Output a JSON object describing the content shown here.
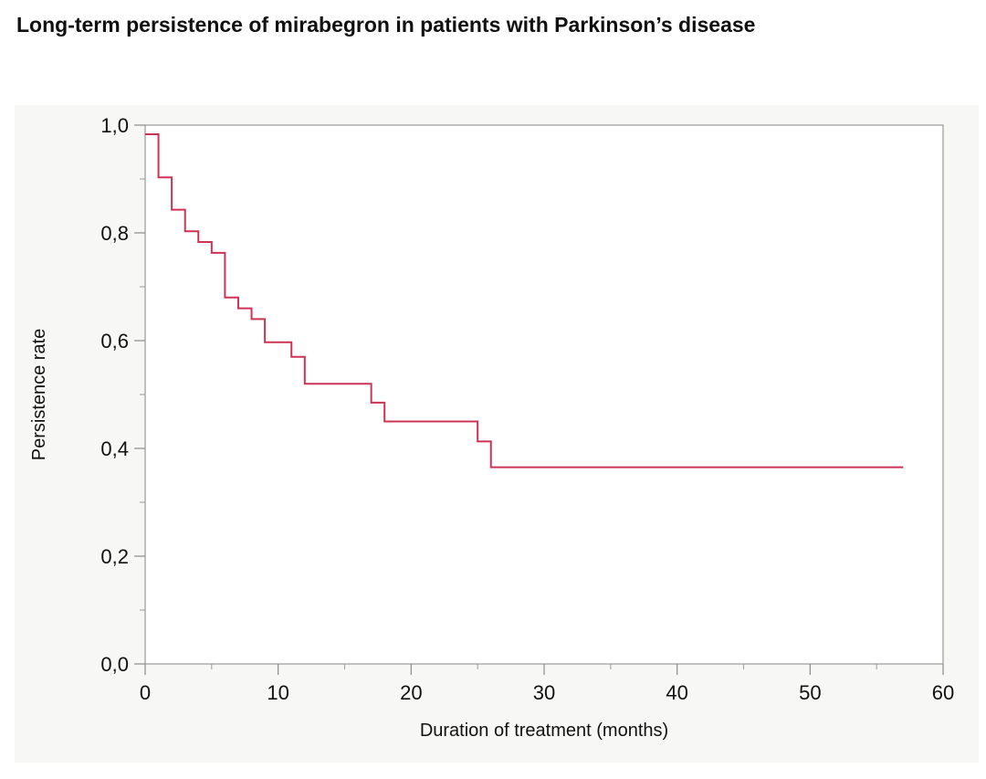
{
  "chart_data": {
    "type": "line",
    "title": "Long-term persistence of mirabegron in patients with Parkinson’s disease",
    "xlabel": "Duration of treatment (months)",
    "ylabel": "Persistence rate",
    "xlim": [
      0,
      60
    ],
    "ylim": [
      0,
      1
    ],
    "x_ticks": [
      0,
      10,
      20,
      30,
      40,
      50,
      60
    ],
    "x_tick_labels": [
      "0",
      "10",
      "20",
      "30",
      "40",
      "50",
      "60"
    ],
    "y_ticks": [
      0,
      0.2,
      0.4,
      0.6,
      0.8,
      1.0
    ],
    "y_tick_labels": [
      "0,0",
      "0,2",
      "0,4",
      "0,6",
      "0,8",
      "1,0"
    ],
    "x_minor_step": 5,
    "y_minor_step": 0.1,
    "grid": false,
    "step_function": true,
    "series": [
      {
        "color": "#cc3355",
        "points": [
          {
            "x": 0,
            "y": 0.983
          },
          {
            "x": 1,
            "y": 0.903
          },
          {
            "x": 2,
            "y": 0.843
          },
          {
            "x": 3,
            "y": 0.803
          },
          {
            "x": 4,
            "y": 0.783
          },
          {
            "x": 5,
            "y": 0.763
          },
          {
            "x": 6,
            "y": 0.68
          },
          {
            "x": 7,
            "y": 0.66
          },
          {
            "x": 8,
            "y": 0.64
          },
          {
            "x": 9,
            "y": 0.597
          },
          {
            "x": 11,
            "y": 0.57
          },
          {
            "x": 12,
            "y": 0.52
          },
          {
            "x": 17,
            "y": 0.485
          },
          {
            "x": 18,
            "y": 0.45
          },
          {
            "x": 25,
            "y": 0.413
          },
          {
            "x": 26,
            "y": 0.365
          },
          {
            "x": 57,
            "y": 0.365
          }
        ]
      }
    ]
  }
}
